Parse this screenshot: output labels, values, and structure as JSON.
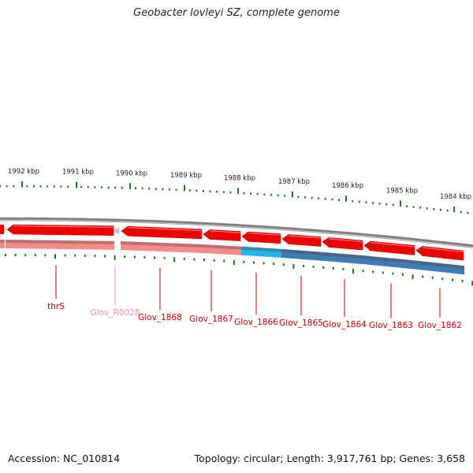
{
  "title": "Geobacter lovleyi SZ, complete genome",
  "footer": {
    "accession": "Accession: NC_010814",
    "topology": "Topology: circular; Length: 3,917,761 bp; Genes: 3,658"
  },
  "colors": {
    "cds": "#ee0000",
    "cds_shade": "#f48a8a",
    "trna": "#f4a8c8",
    "cog_cyan": "#22b4e8",
    "cog_blue": "#3e7db4",
    "backbone": "#808080",
    "ticks": "#1a7a1a"
  },
  "scale_labels": [
    "1992 kbp",
    "1991 kbp",
    "1990 kbp",
    "1989 kbp",
    "1988 kbp",
    "1987 kbp",
    "1986 kbp",
    "1985 kbp",
    "1984 kbp"
  ],
  "features": [
    {
      "id": "left_partial",
      "type": "cds",
      "label": ""
    },
    {
      "id": "thrS",
      "type": "cds",
      "label": "thrS"
    },
    {
      "id": "Glov_R0028",
      "type": "trna",
      "label": "Glov_R0028"
    },
    {
      "id": "Glov_1868",
      "type": "cds",
      "label": "Glov_1868"
    },
    {
      "id": "Glov_1867",
      "type": "cds",
      "label": "Glov_1867"
    },
    {
      "id": "Glov_1866",
      "type": "cds",
      "label": "Glov_1866"
    },
    {
      "id": "Glov_1865",
      "type": "cds",
      "label": "Glov_1865"
    },
    {
      "id": "Glov_1864",
      "type": "cds",
      "label": "Glov_1864"
    },
    {
      "id": "Glov_1863",
      "type": "cds",
      "label": "Glov_1863"
    },
    {
      "id": "Glov_1862",
      "type": "cds",
      "label": "Glov_1862"
    }
  ],
  "cog_track": [
    {
      "feature": "left_partial",
      "color": "cds_shade"
    },
    {
      "feature": "thrS",
      "color": "cds_shade"
    },
    {
      "feature": "Glov_1868",
      "color": "cds_shade"
    },
    {
      "feature": "Glov_1867",
      "color": "cds_shade"
    },
    {
      "feature": "Glov_1866",
      "color": "cog_cyan"
    },
    {
      "feature": "Glov_1865",
      "color": "cog_blue"
    },
    {
      "feature": "Glov_1864",
      "color": "cog_blue"
    },
    {
      "feature": "Glov_1863",
      "color": "cog_blue"
    },
    {
      "feature": "Glov_1862",
      "color": "cog_blue"
    }
  ]
}
